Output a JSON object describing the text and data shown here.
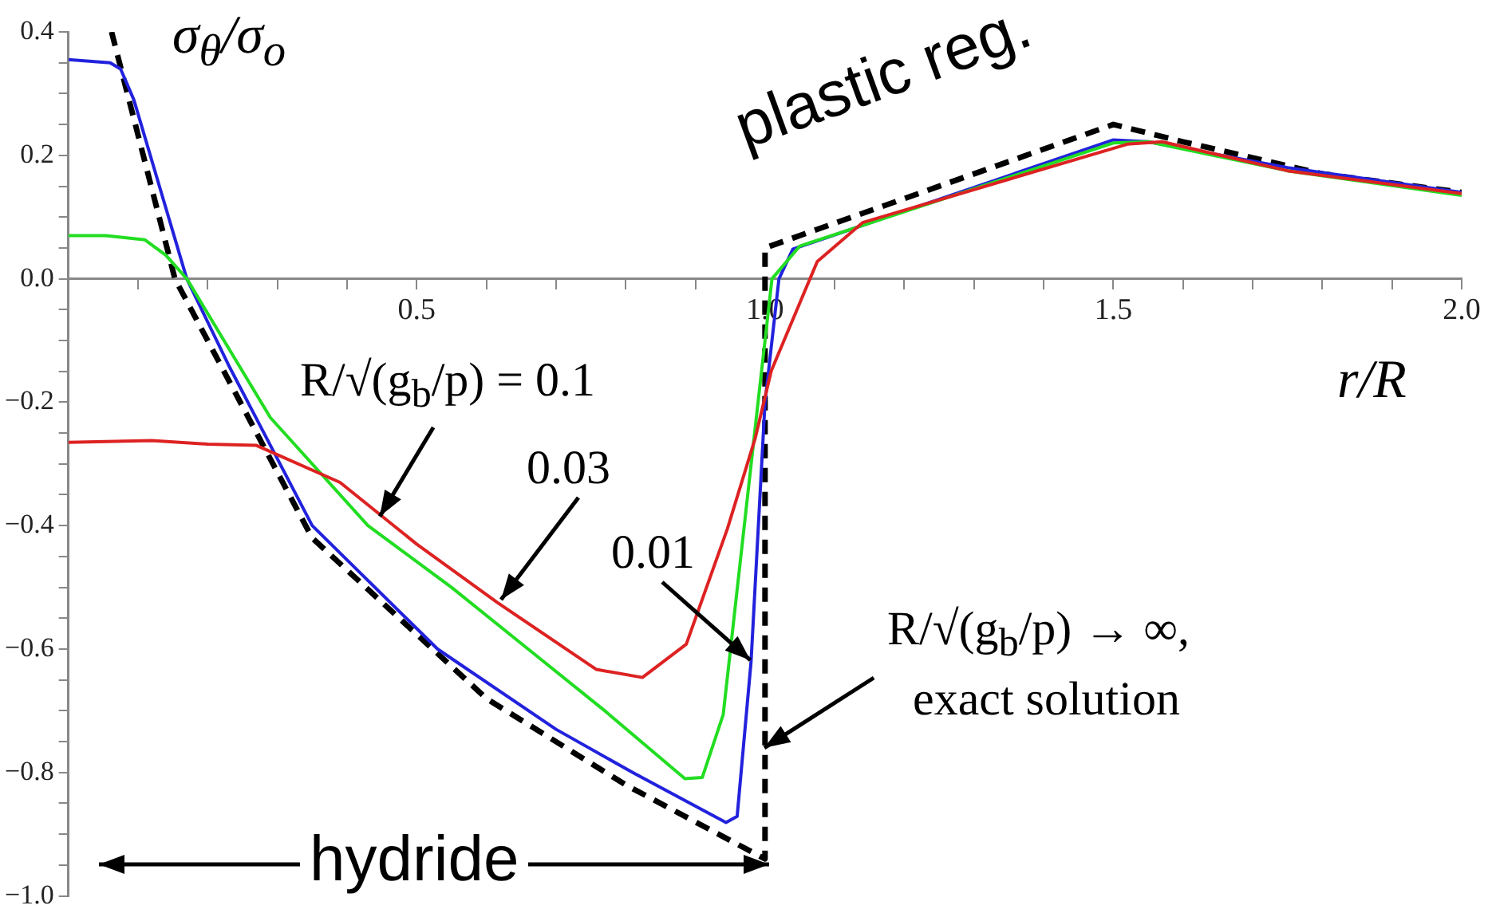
{
  "chart_data": {
    "type": "line",
    "ylabel": "σ$_{θ}$/σ$_{o}$",
    "xlabel": "r/R",
    "xlim": [
      0,
      2
    ],
    "ylim": [
      -1,
      0.4
    ],
    "xticks": [
      {
        "value": 0.1,
        "label": null
      },
      {
        "value": 0.2,
        "label": null
      },
      {
        "value": 0.3,
        "label": null
      },
      {
        "value": 0.4,
        "label": null
      },
      {
        "value": 0.5,
        "label": "0.5"
      },
      {
        "value": 0.6,
        "label": null
      },
      {
        "value": 0.7,
        "label": null
      },
      {
        "value": 0.8,
        "label": null
      },
      {
        "value": 0.9,
        "label": null
      },
      {
        "value": 1,
        "label": "1.0"
      },
      {
        "value": 1.1,
        "label": null
      },
      {
        "value": 1.2,
        "label": null
      },
      {
        "value": 1.3,
        "label": null
      },
      {
        "value": 1.4,
        "label": null
      },
      {
        "value": 1.5,
        "label": "1.5"
      },
      {
        "value": 1.6,
        "label": null
      },
      {
        "value": 1.7,
        "label": null
      },
      {
        "value": 1.8,
        "label": null
      },
      {
        "value": 1.9,
        "label": null
      },
      {
        "value": 2,
        "label": "2.0"
      }
    ],
    "yticks": [
      {
        "value": -1,
        "label": "−1.0"
      },
      {
        "value": -0.95,
        "label": null
      },
      {
        "value": -0.9,
        "label": null
      },
      {
        "value": -0.85,
        "label": null
      },
      {
        "value": -0.8,
        "label": "−0.8"
      },
      {
        "value": -0.75,
        "label": null
      },
      {
        "value": -0.7,
        "label": null
      },
      {
        "value": -0.65,
        "label": null
      },
      {
        "value": -0.6,
        "label": "−0.6"
      },
      {
        "value": -0.55,
        "label": null
      },
      {
        "value": -0.5,
        "label": null
      },
      {
        "value": -0.45,
        "label": null
      },
      {
        "value": -0.4,
        "label": "−0.4"
      },
      {
        "value": -0.35,
        "label": null
      },
      {
        "value": -0.3,
        "label": null
      },
      {
        "value": -0.25,
        "label": null
      },
      {
        "value": -0.2,
        "label": "−0.2"
      },
      {
        "value": -0.15,
        "label": null
      },
      {
        "value": -0.1,
        "label": null
      },
      {
        "value": -0.05,
        "label": null
      },
      {
        "value": 0,
        "label": "0.0"
      },
      {
        "value": 0.05,
        "label": null
      },
      {
        "value": 0.1,
        "label": null
      },
      {
        "value": 0.15,
        "label": null
      },
      {
        "value": 0.2,
        "label": "0.2"
      },
      {
        "value": 0.25,
        "label": null
      },
      {
        "value": 0.3,
        "label": null
      },
      {
        "value": 0.35,
        "label": null
      },
      {
        "value": 0.4,
        "label": "0.4"
      }
    ],
    "grid": false,
    "legend": false,
    "marker": "none",
    "series": [
      {
        "color": "#dd2222",
        "x": [
          0,
          0.12,
          0.2,
          0.27,
          0.39,
          0.5,
          0.615,
          0.758,
          0.824,
          0.887,
          0.946,
          0.986,
          1.009,
          1.075,
          1.14,
          1.52,
          1.57,
          1.75,
          2.0
        ],
        "values": [
          -0.265,
          -0.262,
          -0.268,
          -0.27,
          -0.33,
          -0.43,
          -0.524,
          -0.633,
          -0.646,
          -0.592,
          -0.405,
          -0.258,
          -0.149,
          0.028,
          0.091,
          0.218,
          0.222,
          0.175,
          0.138
        ]
      },
      {
        "color": "#22dd22",
        "x": [
          0,
          0.054,
          0.11,
          0.14,
          0.17,
          0.29,
          0.43,
          0.55,
          0.66,
          0.77,
          0.885,
          0.91,
          0.94,
          0.99,
          1.01,
          1.05,
          1.5,
          1.55,
          1.75,
          2.0
        ],
        "values": [
          0.07,
          0.07,
          0.063,
          0.038,
          0,
          -0.225,
          -0.4,
          -0.5,
          -0.6,
          -0.7,
          -0.81,
          -0.808,
          -0.706,
          -0.2,
          0,
          0.053,
          0.22,
          0.222,
          0.175,
          0.135
        ]
      },
      {
        "color": "#2222dd",
        "x": [
          0,
          0.06,
          0.075,
          0.094,
          0.17,
          0.23,
          0.35,
          0.53,
          0.7,
          0.81,
          0.944,
          0.96,
          0.98,
          1.0,
          1.02,
          1.04,
          1.5,
          1.55,
          1.75,
          2.0
        ],
        "values": [
          0.355,
          0.35,
          0.34,
          0.29,
          0,
          -0.14,
          -0.4,
          -0.6,
          -0.73,
          -0.8,
          -0.881,
          -0.871,
          -0.62,
          -0.2,
          0,
          0.048,
          0.225,
          0.222,
          0.18,
          0.14
        ]
      },
      {
        "color": "#000000",
        "line_style": "dashed",
        "x": [
          0.062,
          0.153,
          0.35,
          0.6,
          0.8,
          1.0,
          1.0,
          1.5,
          1.6,
          1.8,
          2.0
        ],
        "values": [
          0.4,
          0,
          -0.42,
          -0.68,
          -0.82,
          -0.94,
          0.05,
          0.25,
          0.222,
          0.17,
          0.14
        ]
      }
    ],
    "annotations": [
      {
        "text": "R/√(g$_{b}$/p) = 0.1",
        "x": 0.448,
        "y": -0.385
      },
      {
        "text": "0.03",
        "x": 0.62,
        "y": -0.52
      },
      {
        "text": "0.01",
        "x": 0.979,
        "y": -0.618
      },
      {
        "text": "R/√(g$_{b}$/p) → ∞,",
        "x": 1.0,
        "y": -0.76
      },
      "exact solution",
      "plastic reg.",
      "hydride"
    ]
  }
}
